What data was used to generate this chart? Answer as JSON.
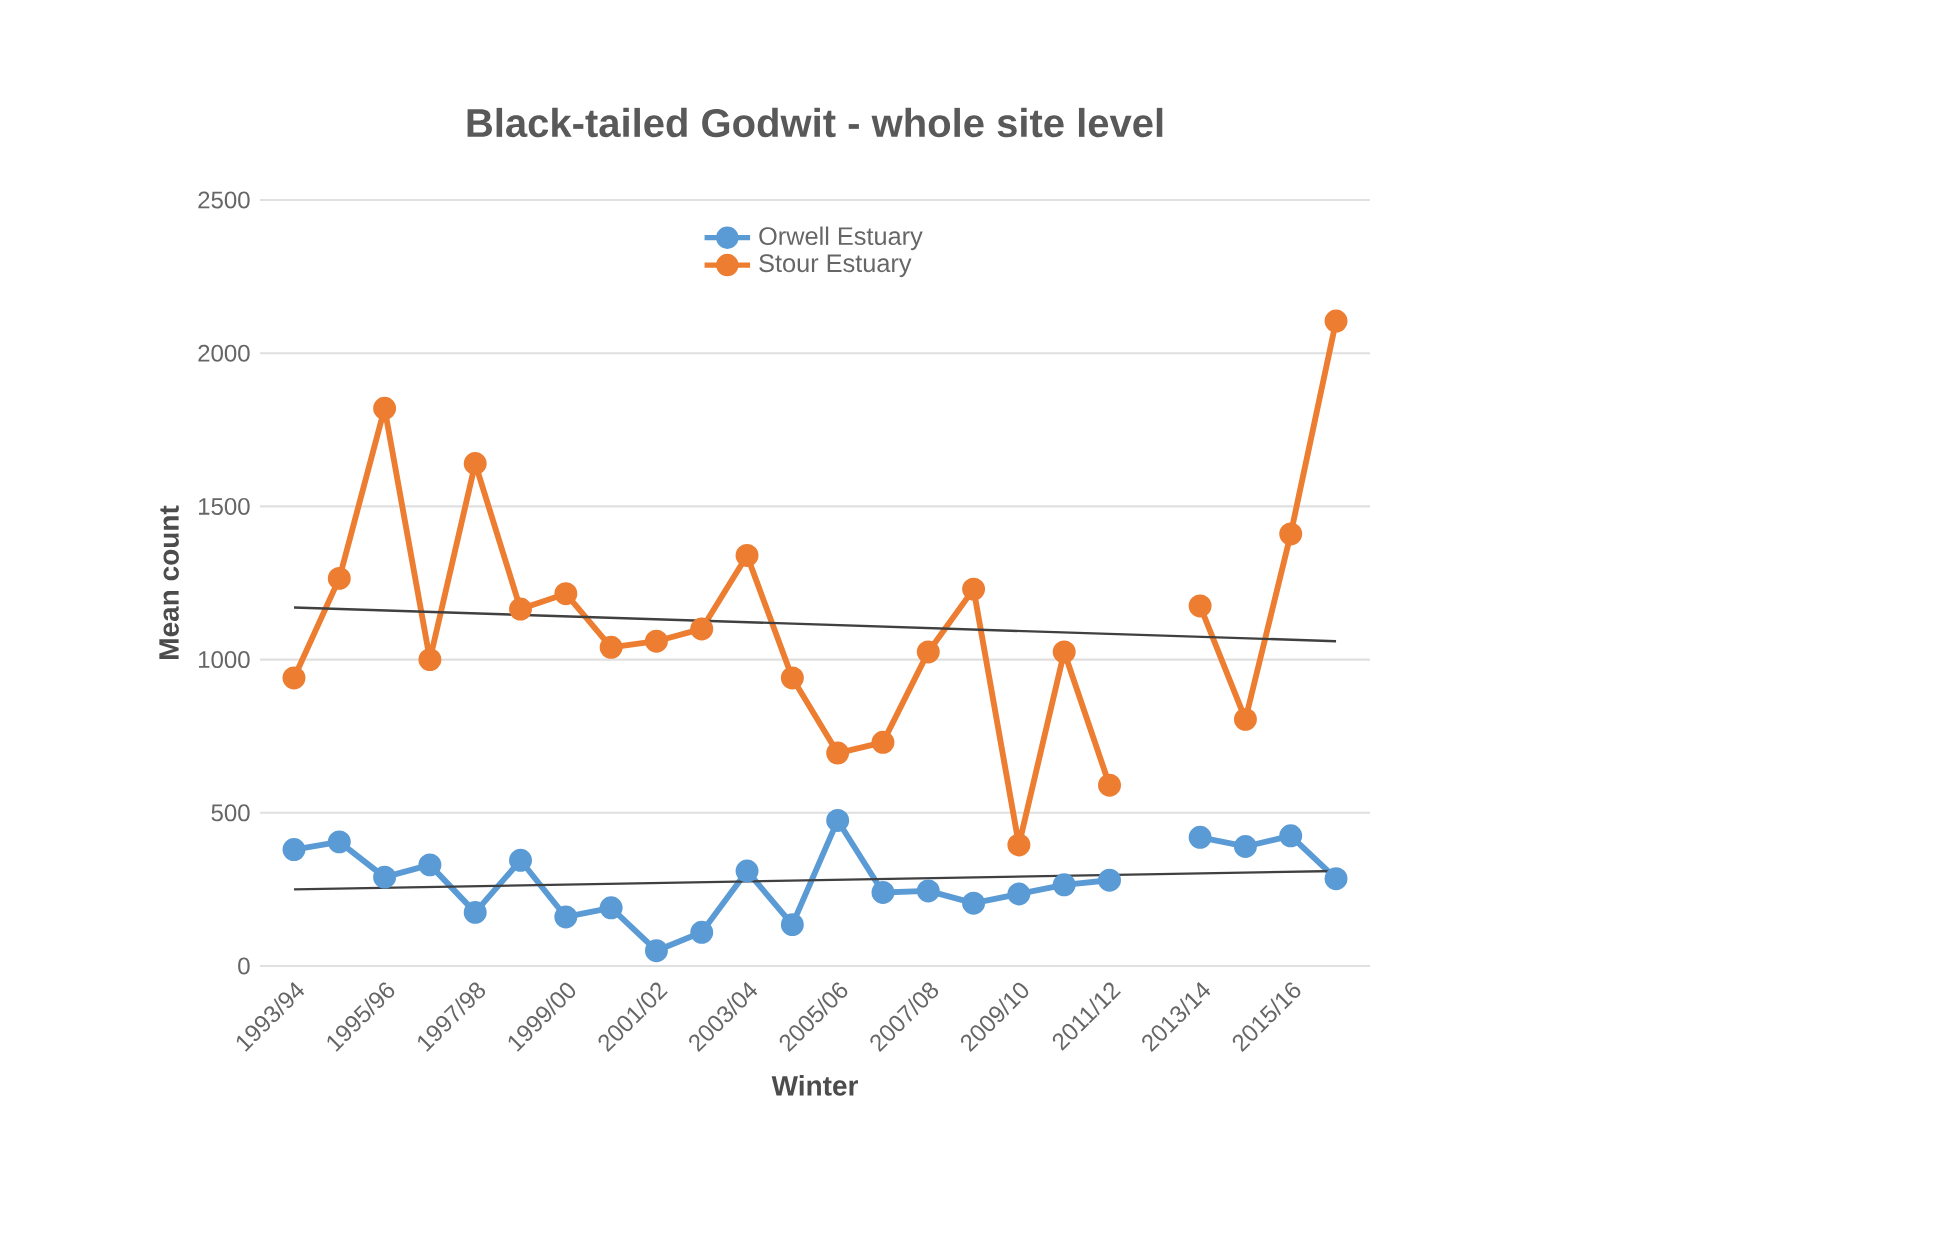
{
  "chart_data": {
    "type": "line",
    "title": "Black-tailed Godwit - whole site level",
    "xlabel": "Winter",
    "ylabel": "Mean count",
    "categories": [
      "1993/94",
      null,
      "1995/96",
      null,
      "1997/98",
      null,
      "1999/00",
      null,
      "2001/02",
      null,
      "2003/04",
      null,
      "2005/06",
      null,
      "2007/08",
      null,
      "2009/10",
      null,
      "2011/12",
      null,
      "2013/14",
      null,
      "2015/16",
      null
    ],
    "series": [
      {
        "name": "Orwell Estuary",
        "color": "#5b9bd5",
        "marker": "circle",
        "values": [
          380,
          405,
          290,
          330,
          175,
          345,
          160,
          190,
          50,
          110,
          310,
          135,
          475,
          240,
          245,
          205,
          235,
          265,
          280,
          null,
          420,
          390,
          425,
          285
        ]
      },
      {
        "name": "Stour Estuary",
        "color": "#ed7d31",
        "marker": "circle",
        "values": [
          940,
          1265,
          1820,
          1000,
          1640,
          1165,
          1215,
          1040,
          1060,
          1100,
          1340,
          940,
          695,
          730,
          1025,
          1230,
          395,
          1025,
          590,
          null,
          1175,
          805,
          1410,
          2105
        ]
      },
      {
        "color": "#404040",
        "marker": "none",
        "values": [
          250,
          null,
          null,
          null,
          null,
          null,
          null,
          null,
          null,
          null,
          null,
          null,
          null,
          null,
          null,
          null,
          null,
          null,
          null,
          null,
          null,
          null,
          null,
          310
        ]
      },
      {
        "color": "#404040",
        "marker": "none",
        "values": [
          1170,
          null,
          null,
          null,
          null,
          null,
          null,
          null,
          null,
          null,
          null,
          null,
          null,
          null,
          null,
          null,
          null,
          null,
          null,
          null,
          null,
          null,
          null,
          1060
        ]
      }
    ],
    "ylim": [
      0,
      2500
    ],
    "yticks": [
      0,
      500,
      1000,
      1500,
      2000,
      2500
    ],
    "grid": "y",
    "legend": "top"
  }
}
